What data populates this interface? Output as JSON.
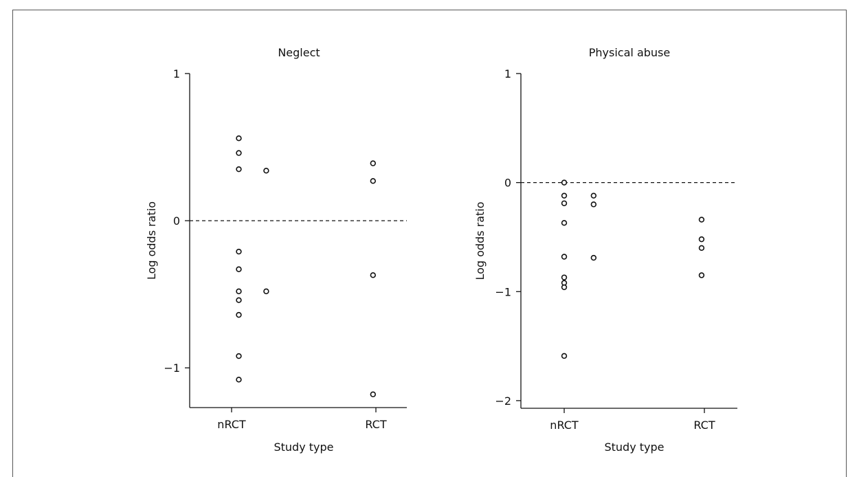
{
  "chart_data": [
    {
      "type": "scatter",
      "title": "Neglect",
      "xlabel": "Study type",
      "ylabel": "Log odds ratio",
      "categories": [
        "nRCT",
        "RCT"
      ],
      "yticks": [
        {
          "value": 1,
          "label": "1"
        },
        {
          "value": 0,
          "label": "0"
        },
        {
          "value": -1,
          "label": "−1"
        }
      ],
      "ylim": [
        -1.27,
        1.0
      ],
      "reference_line": {
        "y": 0,
        "style": "dashed"
      },
      "points": [
        {
          "x": 0.05,
          "y": 0.56
        },
        {
          "x": 0.05,
          "y": 0.46
        },
        {
          "x": 0.05,
          "y": 0.35
        },
        {
          "x": 0.05,
          "y": -0.21
        },
        {
          "x": 0.05,
          "y": -0.33
        },
        {
          "x": 0.05,
          "y": -0.48
        },
        {
          "x": 0.05,
          "y": -0.54
        },
        {
          "x": 0.05,
          "y": -0.64
        },
        {
          "x": 0.05,
          "y": -0.92
        },
        {
          "x": 0.05,
          "y": -1.08
        },
        {
          "x": 0.24,
          "y": 0.34
        },
        {
          "x": 0.24,
          "y": -0.48
        },
        {
          "x": 0.98,
          "y": 0.39
        },
        {
          "x": 0.98,
          "y": 0.27
        },
        {
          "x": 0.98,
          "y": -0.37
        },
        {
          "x": 0.98,
          "y": -1.18
        }
      ]
    },
    {
      "type": "scatter",
      "title": "Physical abuse",
      "xlabel": "Study type",
      "ylabel": "Log odds ratio",
      "categories": [
        "nRCT",
        "RCT"
      ],
      "yticks": [
        {
          "value": 1,
          "label": "1"
        },
        {
          "value": 0,
          "label": "0"
        },
        {
          "value": -1,
          "label": "−1"
        },
        {
          "value": -2,
          "label": "−2"
        }
      ],
      "ylim": [
        -2.07,
        1.0
      ],
      "reference_line": {
        "y": 0,
        "style": "dashed"
      },
      "points": [
        {
          "x": 0.0,
          "y": 0.0
        },
        {
          "x": 0.0,
          "y": -0.12
        },
        {
          "x": 0.0,
          "y": -0.19
        },
        {
          "x": 0.0,
          "y": -0.37
        },
        {
          "x": 0.0,
          "y": -0.68
        },
        {
          "x": 0.0,
          "y": -0.87
        },
        {
          "x": 0.0,
          "y": -0.92
        },
        {
          "x": 0.0,
          "y": -0.96
        },
        {
          "x": 0.0,
          "y": -1.59
        },
        {
          "x": 0.21,
          "y": -0.12
        },
        {
          "x": 0.21,
          "y": -0.2
        },
        {
          "x": 0.21,
          "y": -0.69
        },
        {
          "x": 0.98,
          "y": -0.34
        },
        {
          "x": 0.98,
          "y": -0.52
        },
        {
          "x": 0.98,
          "y": -0.6
        },
        {
          "x": 0.98,
          "y": -0.85
        }
      ]
    }
  ]
}
